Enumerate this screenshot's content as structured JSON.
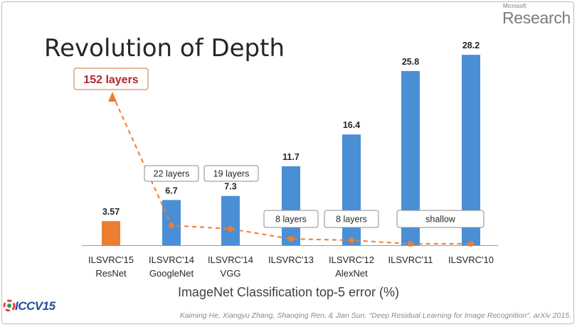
{
  "slide": {
    "title": "Revolution of Depth",
    "logo_top": "Microsoft",
    "logo_main": "Research",
    "conference_logo": "ICCV15",
    "citation": "Kaiming He, Xiangyu Zhang, Shaoqing Ren, & Jian Sun. \"Deep Residual Learning for Image Recognition\". arXiv 2015."
  },
  "chart_data": {
    "type": "bar",
    "title": "",
    "xlabel": "ImageNet Classification top-5 error (%)",
    "ylabel": "",
    "ylim": [
      0,
      30
    ],
    "grid": false,
    "categories": [
      {
        "line1": "ILSVRC'15",
        "line2": "ResNet"
      },
      {
        "line1": "ILSVRC'14",
        "line2": "GoogleNet"
      },
      {
        "line1": "ILSVRC'14",
        "line2": "VGG"
      },
      {
        "line1": "ILSVRC'13",
        "line2": ""
      },
      {
        "line1": "ILSVRC'12",
        "line2": "AlexNet"
      },
      {
        "line1": "ILSVRC'11",
        "line2": ""
      },
      {
        "line1": "ILSVRC'10",
        "line2": ""
      }
    ],
    "values": [
      3.57,
      6.7,
      7.3,
      11.7,
      16.4,
      25.8,
      28.2
    ],
    "value_labels": [
      "3.57",
      "6.7",
      "7.3",
      "11.7",
      "16.4",
      "25.8",
      "28.2"
    ],
    "bar_colors": [
      "#ed7d31",
      "#4a8fd6",
      "#4a8fd6",
      "#4a8fd6",
      "#4a8fd6",
      "#4a8fd6",
      "#4a8fd6"
    ],
    "layer_labels": [
      {
        "text": "152 layers",
        "style": "highlight"
      },
      {
        "text": "22 layers",
        "style": "above"
      },
      {
        "text": "19 layers",
        "style": "above"
      },
      {
        "text": "8 layers",
        "style": "inside"
      },
      {
        "text": "8 layers",
        "style": "inside"
      },
      {
        "text": "shallow",
        "style": "span"
      }
    ],
    "depth_trend": {
      "description": "dashed orange line connecting markers inside each bar, rising to the 152 layers label",
      "color": "#ed7d31"
    }
  }
}
